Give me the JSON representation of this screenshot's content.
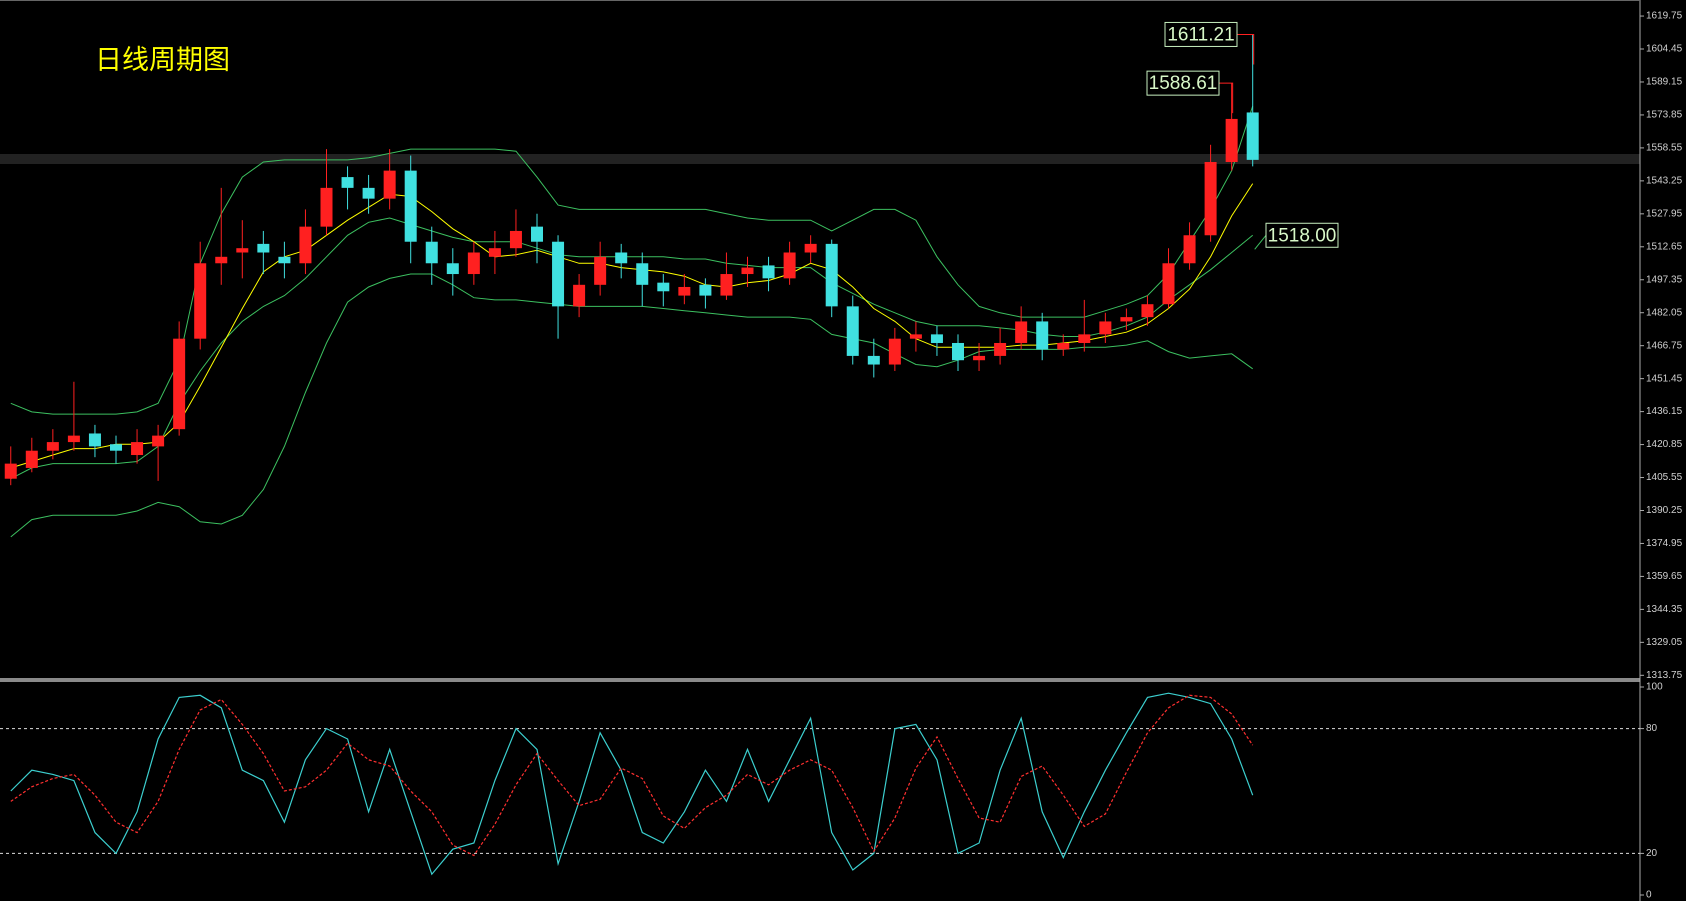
{
  "chart_data": [
    {
      "type": "candlestick",
      "title": "日线周期图",
      "up_color": "#ff2020",
      "down_color": "#40e0e0",
      "ylim": [
        1312.5,
        1627.2
      ],
      "yticks": [
        1313.75,
        1329.05,
        1344.35,
        1359.65,
        1374.95,
        1390.25,
        1405.55,
        1420.85,
        1436.15,
        1451.45,
        1466.75,
        1482.05,
        1497.35,
        1512.65,
        1527.95,
        1543.25,
        1558.55,
        1573.85,
        1589.15,
        1604.45,
        1619.75
      ],
      "ohlc": [
        [
          1405,
          1420,
          1402,
          1412
        ],
        [
          1410,
          1424,
          1408,
          1418
        ],
        [
          1418,
          1428,
          1414,
          1422
        ],
        [
          1422,
          1450,
          1418,
          1425
        ],
        [
          1426,
          1430,
          1415,
          1420
        ],
        [
          1421,
          1425,
          1412,
          1418
        ],
        [
          1416,
          1428,
          1412,
          1422
        ],
        [
          1420,
          1430,
          1404,
          1425
        ],
        [
          1428,
          1478,
          1425,
          1470
        ],
        [
          1470,
          1515,
          1465,
          1505
        ],
        [
          1505,
          1540,
          1495,
          1508
        ],
        [
          1510,
          1525,
          1498,
          1512
        ],
        [
          1514,
          1520,
          1500,
          1510
        ],
        [
          1508,
          1515,
          1498,
          1505
        ],
        [
          1505,
          1530,
          1500,
          1522
        ],
        [
          1522,
          1558,
          1518,
          1540
        ],
        [
          1545,
          1550,
          1530,
          1540
        ],
        [
          1540,
          1546,
          1528,
          1535
        ],
        [
          1535,
          1558,
          1530,
          1548
        ],
        [
          1548,
          1555,
          1505,
          1515
        ],
        [
          1515,
          1522,
          1495,
          1505
        ],
        [
          1505,
          1512,
          1490,
          1500
        ],
        [
          1500,
          1515,
          1495,
          1510
        ],
        [
          1508,
          1520,
          1500,
          1512
        ],
        [
          1512,
          1530,
          1508,
          1520
        ],
        [
          1522,
          1528,
          1505,
          1515
        ],
        [
          1515,
          1518,
          1470,
          1485
        ],
        [
          1485,
          1500,
          1480,
          1495
        ],
        [
          1495,
          1515,
          1490,
          1508
        ],
        [
          1510,
          1514,
          1498,
          1505
        ],
        [
          1505,
          1510,
          1485,
          1495
        ],
        [
          1496,
          1500,
          1485,
          1492
        ],
        [
          1490,
          1500,
          1486,
          1494
        ],
        [
          1495,
          1498,
          1484,
          1490
        ],
        [
          1490,
          1510,
          1488,
          1500
        ],
        [
          1500,
          1508,
          1494,
          1503
        ],
        [
          1504,
          1508,
          1492,
          1498
        ],
        [
          1498,
          1515,
          1495,
          1510
        ],
        [
          1510,
          1518,
          1505,
          1514
        ],
        [
          1514,
          1516,
          1480,
          1485
        ],
        [
          1485,
          1490,
          1458,
          1462
        ],
        [
          1462,
          1470,
          1452,
          1458
        ],
        [
          1458,
          1475,
          1455,
          1470
        ],
        [
          1470,
          1478,
          1464,
          1472
        ],
        [
          1472,
          1476,
          1462,
          1468
        ],
        [
          1468,
          1472,
          1455,
          1460
        ],
        [
          1460,
          1468,
          1455,
          1462
        ],
        [
          1462,
          1475,
          1458,
          1468
        ],
        [
          1468,
          1485,
          1465,
          1478
        ],
        [
          1478,
          1482,
          1460,
          1465
        ],
        [
          1465,
          1472,
          1462,
          1468
        ],
        [
          1468,
          1488,
          1464,
          1472
        ],
        [
          1472,
          1482,
          1468,
          1478
        ],
        [
          1478,
          1484,
          1474,
          1480
        ],
        [
          1480,
          1490,
          1476,
          1486
        ],
        [
          1486,
          1512,
          1484,
          1505
        ],
        [
          1505,
          1524,
          1502,
          1518
        ],
        [
          1518,
          1560,
          1515,
          1552
        ],
        [
          1552,
          1588.61,
          1548,
          1572
        ],
        [
          1575,
          1611.21,
          1550,
          1553
        ]
      ],
      "ma": {
        "color": "#ffff00",
        "values": [
          1410,
          1413,
          1416,
          1419,
          1419,
          1421,
          1421,
          1422,
          1431,
          1448,
          1466,
          1484,
          1501,
          1508,
          1511,
          1518,
          1525,
          1531,
          1537,
          1536,
          1529,
          1521,
          1515,
          1508,
          1509,
          1511,
          1508,
          1505,
          1505,
          1503,
          1502,
          1501,
          1499,
          1495,
          1494,
          1496,
          1497,
          1500,
          1505,
          1502,
          1494,
          1484,
          1478,
          1470,
          1466,
          1466,
          1466,
          1466,
          1467,
          1467,
          1468,
          1469,
          1471,
          1473,
          1477,
          1484,
          1493,
          1508,
          1527,
          1542
        ]
      },
      "bands": {
        "color": "#3cc060",
        "upper": [
          1440,
          1436,
          1435,
          1435,
          1435,
          1435,
          1436,
          1440,
          1460,
          1505,
          1528,
          1545,
          1552,
          1553,
          1553,
          1553,
          1553,
          1554,
          1556,
          1558,
          1558,
          1558,
          1558,
          1558,
          1557,
          1545,
          1532,
          1530,
          1530,
          1530,
          1530,
          1530,
          1530,
          1530,
          1528,
          1526,
          1525,
          1525,
          1525,
          1520,
          1525,
          1530,
          1530,
          1525,
          1508,
          1495,
          1485,
          1482,
          1480,
          1480,
          1480,
          1480,
          1483,
          1486,
          1490,
          1500,
          1515,
          1530,
          1548,
          1578
        ],
        "middle": [
          1405,
          1410,
          1412,
          1412,
          1412,
          1412,
          1413,
          1420,
          1440,
          1455,
          1468,
          1478,
          1485,
          1490,
          1498,
          1508,
          1518,
          1524,
          1526,
          1523,
          1520,
          1517,
          1515,
          1515,
          1515,
          1512,
          1509,
          1508,
          1508,
          1508,
          1508,
          1508,
          1507,
          1507,
          1505,
          1504,
          1503,
          1503,
          1503,
          1496,
          1491,
          1486,
          1482,
          1478,
          1476,
          1476,
          1476,
          1475,
          1474,
          1472,
          1471,
          1471,
          1473,
          1476,
          1480,
          1488,
          1495,
          1502,
          1510,
          1518
        ],
        "lower": [
          1378,
          1386,
          1388,
          1388,
          1388,
          1388,
          1390,
          1394,
          1392,
          1385,
          1384,
          1388,
          1400,
          1420,
          1445,
          1468,
          1487,
          1494,
          1498,
          1500,
          1500,
          1495,
          1489,
          1488,
          1488,
          1487,
          1486,
          1485,
          1485,
          1485,
          1485,
          1484,
          1483,
          1482,
          1481,
          1480,
          1480,
          1480,
          1479,
          1472,
          1470,
          1468,
          1463,
          1458,
          1457,
          1460,
          1464,
          1465,
          1465,
          1465,
          1465,
          1466,
          1466,
          1467,
          1469,
          1464,
          1461,
          1462,
          1463,
          1456
        ]
      },
      "annotations": [
        {
          "value": 1611.21,
          "label": "1611.21"
        },
        {
          "value": 1588.61,
          "label": "1588.61"
        },
        {
          "value": 1518.0,
          "label": "1518.00"
        }
      ]
    },
    {
      "type": "line",
      "ylim": [
        0,
        100
      ],
      "yticks": [
        0,
        20,
        80,
        100
      ],
      "levels": [
        20,
        80
      ],
      "series": [
        {
          "color": "#3ccfcf",
          "dash": false,
          "values": [
            50,
            60,
            58,
            55,
            30,
            20,
            40,
            75,
            95,
            96,
            90,
            60,
            55,
            35,
            65,
            80,
            75,
            40,
            70,
            40,
            10,
            22,
            25,
            55,
            80,
            70,
            15,
            45,
            78,
            60,
            30,
            25,
            40,
            60,
            45,
            70,
            45,
            65,
            85,
            30,
            12,
            20,
            80,
            82,
            65,
            20,
            25,
            60,
            85,
            40,
            18,
            40,
            60,
            78,
            95,
            97,
            95,
            92,
            75,
            48
          ]
        },
        {
          "color": "#ff3030",
          "dash": true,
          "values": [
            45,
            52,
            56,
            58,
            48,
            35,
            30,
            45,
            70,
            89,
            94,
            82,
            68,
            50,
            52,
            60,
            73,
            65,
            62,
            50,
            40,
            24,
            19,
            34,
            53,
            68,
            55,
            43,
            46,
            61,
            56,
            38,
            32,
            42,
            48,
            58,
            53,
            60,
            65,
            60,
            42,
            21,
            37,
            61,
            76,
            56,
            37,
            35,
            57,
            62,
            48,
            33,
            39,
            59,
            78,
            90,
            96,
            95,
            87,
            72
          ]
        }
      ]
    }
  ]
}
